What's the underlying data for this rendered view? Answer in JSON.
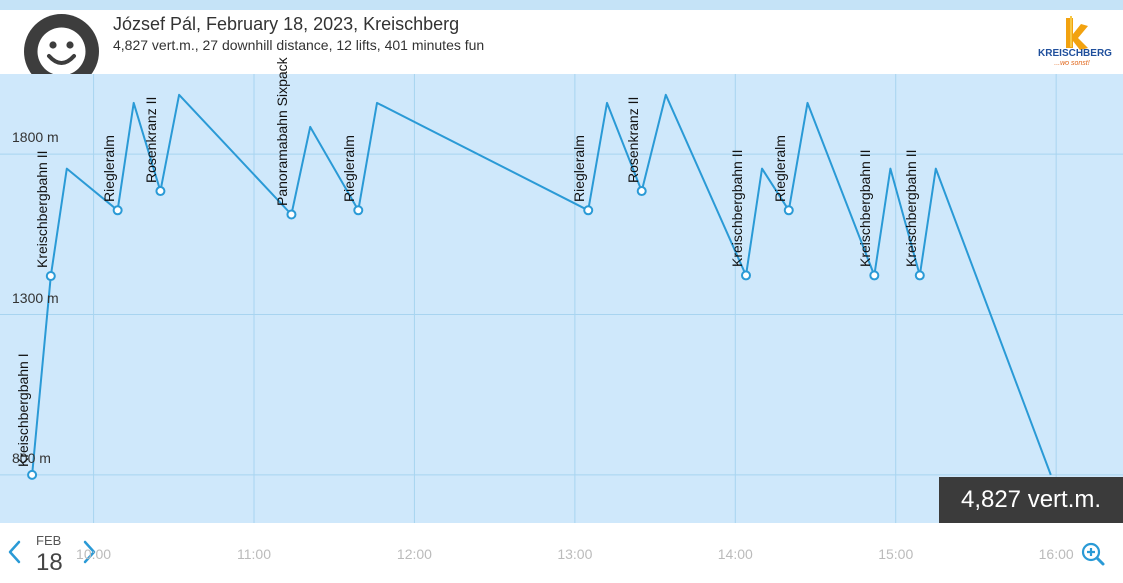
{
  "header": {
    "title": "József Pál, February 18, 2023, Kreischberg",
    "subtitle": "4,827 vert.m., 27 downhill distance, 12 lifts, 401 minutes fun",
    "avatar_icon": "smiley-face-icon",
    "logo": {
      "name": "KREISCHBERG",
      "tagline": "...wo sonst!"
    }
  },
  "date_nav": {
    "month": "FEB",
    "day": "18",
    "prev_icon": "chevron-left-icon",
    "next_icon": "chevron-right-icon"
  },
  "zoom_icon": "zoom-in-icon",
  "total_badge": "4,827 vert.m.",
  "colors": {
    "line": "#2a9ad6",
    "plot_bg": "#cfe8fb",
    "grid": "#a8d4f0",
    "badge_bg": "#3b3b3b",
    "nav": "#2a9ad6"
  },
  "chart_data": {
    "type": "line",
    "y_unit": "m",
    "yticks": [
      800,
      1300,
      1800
    ],
    "ytick_labels": [
      "800 m",
      "1300 m",
      "1800 m"
    ],
    "ylim": [
      650,
      2050
    ],
    "xticks": [
      "10:00",
      "11:00",
      "12:00",
      "13:00",
      "14:00",
      "15:00",
      "16:00"
    ],
    "xlim": [
      "09:25",
      "16:25"
    ],
    "grid": true,
    "points": [
      {
        "t": "09:37",
        "alt": 800
      },
      {
        "t": "09:44",
        "alt": 1420
      },
      {
        "t": "09:50",
        "alt": 1755
      },
      {
        "t": "10:09",
        "alt": 1625
      },
      {
        "t": "10:15",
        "alt": 1960
      },
      {
        "t": "10:25",
        "alt": 1685
      },
      {
        "t": "10:32",
        "alt": 1985
      },
      {
        "t": "11:14",
        "alt": 1612
      },
      {
        "t": "11:21",
        "alt": 1885
      },
      {
        "t": "11:39",
        "alt": 1625
      },
      {
        "t": "11:46",
        "alt": 1960
      },
      {
        "t": "13:05",
        "alt": 1625
      },
      {
        "t": "13:12",
        "alt": 1960
      },
      {
        "t": "13:25",
        "alt": 1685
      },
      {
        "t": "13:34",
        "alt": 1985
      },
      {
        "t": "14:04",
        "alt": 1422
      },
      {
        "t": "14:10",
        "alt": 1755
      },
      {
        "t": "14:20",
        "alt": 1625
      },
      {
        "t": "14:27",
        "alt": 1960
      },
      {
        "t": "14:52",
        "alt": 1422
      },
      {
        "t": "14:58",
        "alt": 1755
      },
      {
        "t": "15:09",
        "alt": 1422
      },
      {
        "t": "15:15",
        "alt": 1755
      },
      {
        "t": "15:58",
        "alt": 800
      }
    ],
    "lifts": [
      {
        "name": "Kreischbergbahn I",
        "t": "09:37",
        "alt": 800
      },
      {
        "name": "Kreischbergbahn II",
        "t": "09:44",
        "alt": 1420
      },
      {
        "name": "Riegleralm",
        "t": "10:09",
        "alt": 1625
      },
      {
        "name": "Rosenkranz II",
        "t": "10:25",
        "alt": 1685
      },
      {
        "name": "Panoramabahn Sixpack",
        "t": "11:14",
        "alt": 1612
      },
      {
        "name": "Riegleralm",
        "t": "11:39",
        "alt": 1625
      },
      {
        "name": "Riegleralm",
        "t": "13:05",
        "alt": 1625
      },
      {
        "name": "Rosenkranz II",
        "t": "13:25",
        "alt": 1685
      },
      {
        "name": "Kreischbergbahn II",
        "t": "14:04",
        "alt": 1422
      },
      {
        "name": "Riegleralm",
        "t": "14:20",
        "alt": 1625
      },
      {
        "name": "Kreischbergbahn II",
        "t": "14:52",
        "alt": 1422
      },
      {
        "name": "Kreischbergbahn II",
        "t": "15:09",
        "alt": 1422
      }
    ]
  }
}
